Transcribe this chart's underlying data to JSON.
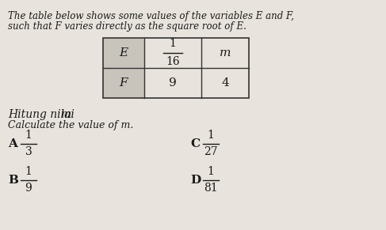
{
  "title_line1": "The table below shows some values of the variables E and F,",
  "title_line2": "such that F varies directly as the square root of E.",
  "hitung": "Hitung nilai m.",
  "calculate": "Calculate the value of m.",
  "options": [
    {
      "label": "A",
      "num": "1",
      "den": "3"
    },
    {
      "label": "C",
      "num": "1",
      "den": "27"
    },
    {
      "label": "B",
      "num": "1",
      "den": "9"
    },
    {
      "label": "D",
      "num": "1",
      "den": "81"
    }
  ],
  "bg_color": "#e8e4dd",
  "header_bg": "#c8c4bc",
  "table_text_color": "#1a1a1a",
  "body_text_color": "#1a1a1a"
}
